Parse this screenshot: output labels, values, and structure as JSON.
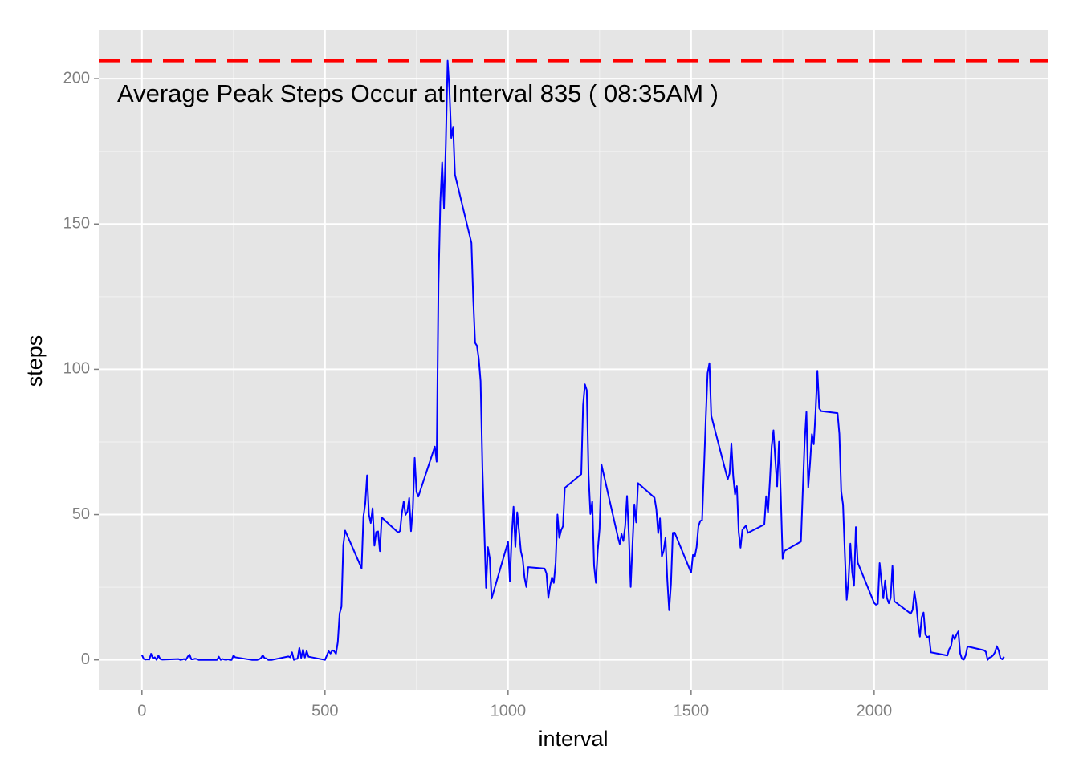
{
  "chart_data": {
    "type": "line",
    "annotation": "Average Peak Steps Occur at Interval 835 ( 08:35AM )",
    "xlabel": "interval",
    "ylabel": "steps",
    "color": "#0000ff",
    "hline": 206.2,
    "hline_color": "#ff0000",
    "xlim": [
      -118,
      2474
    ],
    "xticks": [
      0,
      500,
      1000,
      1500,
      2000
    ],
    "ylim": [
      -10.3,
      216.6
    ],
    "yticks": [
      0,
      50,
      100,
      150,
      200
    ],
    "grid": true,
    "x": [
      0,
      5,
      10,
      15,
      20,
      25,
      30,
      35,
      40,
      45,
      50,
      55,
      100,
      105,
      110,
      115,
      120,
      125,
      130,
      135,
      140,
      145,
      150,
      155,
      200,
      205,
      210,
      215,
      220,
      225,
      230,
      235,
      240,
      245,
      250,
      255,
      300,
      305,
      310,
      315,
      320,
      325,
      330,
      335,
      340,
      345,
      350,
      355,
      400,
      405,
      410,
      415,
      420,
      425,
      430,
      435,
      440,
      445,
      450,
      455,
      500,
      505,
      510,
      515,
      520,
      525,
      530,
      535,
      540,
      545,
      550,
      555,
      600,
      605,
      610,
      615,
      620,
      625,
      630,
      635,
      640,
      645,
      650,
      655,
      700,
      705,
      710,
      715,
      720,
      725,
      730,
      735,
      740,
      745,
      750,
      755,
      800,
      805,
      810,
      815,
      820,
      825,
      830,
      835,
      840,
      845,
      850,
      855,
      900,
      905,
      910,
      915,
      920,
      925,
      930,
      935,
      940,
      945,
      950,
      955,
      1000,
      1005,
      1010,
      1015,
      1020,
      1025,
      1030,
      1035,
      1040,
      1045,
      1050,
      1055,
      1100,
      1105,
      1110,
      1115,
      1120,
      1125,
      1130,
      1135,
      1140,
      1145,
      1150,
      1155,
      1200,
      1205,
      1210,
      1215,
      1220,
      1225,
      1230,
      1235,
      1240,
      1245,
      1250,
      1255,
      1300,
      1305,
      1310,
      1315,
      1320,
      1325,
      1330,
      1335,
      1340,
      1345,
      1350,
      1355,
      1400,
      1405,
      1410,
      1415,
      1420,
      1425,
      1430,
      1435,
      1440,
      1445,
      1450,
      1455,
      1500,
      1505,
      1510,
      1515,
      1520,
      1525,
      1530,
      1535,
      1540,
      1545,
      1550,
      1555,
      1600,
      1605,
      1610,
      1615,
      1620,
      1625,
      1630,
      1635,
      1640,
      1645,
      1650,
      1655,
      1700,
      1705,
      1710,
      1715,
      1720,
      1725,
      1730,
      1735,
      1740,
      1745,
      1750,
      1755,
      1800,
      1805,
      1810,
      1815,
      1820,
      1825,
      1830,
      1835,
      1840,
      1845,
      1850,
      1855,
      1900,
      1905,
      1910,
      1915,
      1920,
      1925,
      1930,
      1935,
      1940,
      1945,
      1950,
      1955,
      2000,
      2005,
      2010,
      2015,
      2020,
      2025,
      2030,
      2035,
      2040,
      2045,
      2050,
      2055,
      2100,
      2105,
      2110,
      2115,
      2120,
      2125,
      2130,
      2135,
      2140,
      2145,
      2150,
      2155,
      2200,
      2205,
      2210,
      2215,
      2220,
      2225,
      2230,
      2235,
      2240,
      2245,
      2250,
      2255,
      2300,
      2305,
      2310,
      2315,
      2320,
      2325,
      2330,
      2335,
      2340,
      2345,
      2350,
      2355
    ],
    "values": [
      1.7,
      0.3,
      0.1,
      0.2,
      0.1,
      2.1,
      0.5,
      0.9,
      0,
      1.5,
      0.3,
      0.1,
      0.3,
      0,
      0.1,
      0.3,
      0,
      1.1,
      1.8,
      0.2,
      0.2,
      0.4,
      0.3,
      0,
      0,
      0,
      1.1,
      0,
      0.3,
      0.1,
      0,
      0.2,
      0,
      0,
      1.5,
      0.9,
      0,
      0,
      0,
      0,
      0.2,
      0.6,
      1.6,
      0.6,
      0.5,
      0,
      0,
      0,
      1.2,
      0.9,
      2.6,
      0,
      0.3,
      0.4,
      4.1,
      0.7,
      3.5,
      0.8,
      3.0,
      1.1,
      0,
      1.5,
      3.0,
      2.2,
      3.3,
      3.0,
      2.1,
      6.1,
      16.0,
      18.3,
      39.5,
      44.5,
      31.5,
      49.3,
      53.8,
      63.5,
      50.0,
      47.1,
      52.2,
      39.3,
      44.0,
      44.2,
      37.4,
      49.0,
      43.8,
      44.4,
      50.5,
      54.5,
      49.9,
      51.0,
      55.7,
      44.3,
      52.3,
      69.5,
      57.8,
      56.2,
      73.4,
      68.2,
      129.4,
      157.5,
      171.2,
      155.4,
      177.3,
      206.2,
      195.9,
      179.6,
      183.4,
      167.0,
      143.5,
      124.0,
      109.1,
      108.1,
      103.7,
      95.9,
      66.2,
      45.2,
      24.8,
      38.8,
      35.0,
      21.1,
      40.6,
      27.0,
      42.4,
      52.7,
      38.9,
      50.8,
      44.3,
      37.4,
      34.7,
      28.3,
      25.1,
      31.9,
      31.4,
      29.7,
      21.3,
      25.5,
      28.4,
      26.5,
      33.4,
      50.0,
      42.0,
      44.6,
      46.0,
      59.2,
      63.9,
      87.7,
      94.8,
      92.8,
      63.4,
      50.2,
      54.5,
      32.4,
      26.5,
      37.7,
      45.1,
      67.3,
      42.3,
      39.9,
      43.3,
      40.9,
      46.2,
      56.4,
      42.8,
      25.1,
      39.9,
      53.5,
      47.3,
      60.8,
      55.8,
      51.9,
      43.6,
      48.7,
      35.5,
      37.6,
      42.0,
      27.5,
      17.1,
      26.1,
      43.7,
      43.8,
      30.0,
      36.1,
      35.5,
      38.8,
      46.0,
      47.8,
      48.1,
      65.3,
      82.9,
      98.7,
      102.1,
      84.0,
      62.1,
      64.1,
      74.5,
      63.2,
      56.9,
      59.8,
      43.9,
      38.6,
      44.7,
      45.5,
      46.2,
      43.7,
      46.6,
      56.3,
      50.7,
      61.2,
      73.4,
      79.0,
      68.9,
      59.7,
      75.1,
      56.5,
      34.8,
      37.5,
      40.7,
      58.0,
      74.7,
      85.3,
      59.3,
      67.8,
      77.7,
      74.2,
      85.3,
      99.5,
      86.6,
      85.6,
      84.9,
      77.8,
      58.0,
      53.4,
      36.3,
      20.7,
      27.4,
      40.0,
      30.2,
      25.5,
      45.7,
      33.5,
      19.6,
      19.0,
      19.3,
      33.3,
      26.8,
      21.2,
      27.3,
      21.3,
      19.5,
      21.3,
      32.3,
      20.2,
      15.9,
      17.2,
      23.5,
      19.2,
      12.5,
      8.0,
      14.7,
      16.3,
      8.7,
      7.8,
      8.1,
      2.6,
      1.5,
      3.7,
      4.7,
      8.4,
      7.1,
      8.7,
      9.8,
      2.2,
      0.3,
      0.1,
      1.6,
      4.6,
      3.3,
      2.8,
      0,
      0.8,
      1.0,
      1.6,
      2.6,
      4.7,
      3.3,
      0.6,
      0.2,
      1.1
    ]
  }
}
